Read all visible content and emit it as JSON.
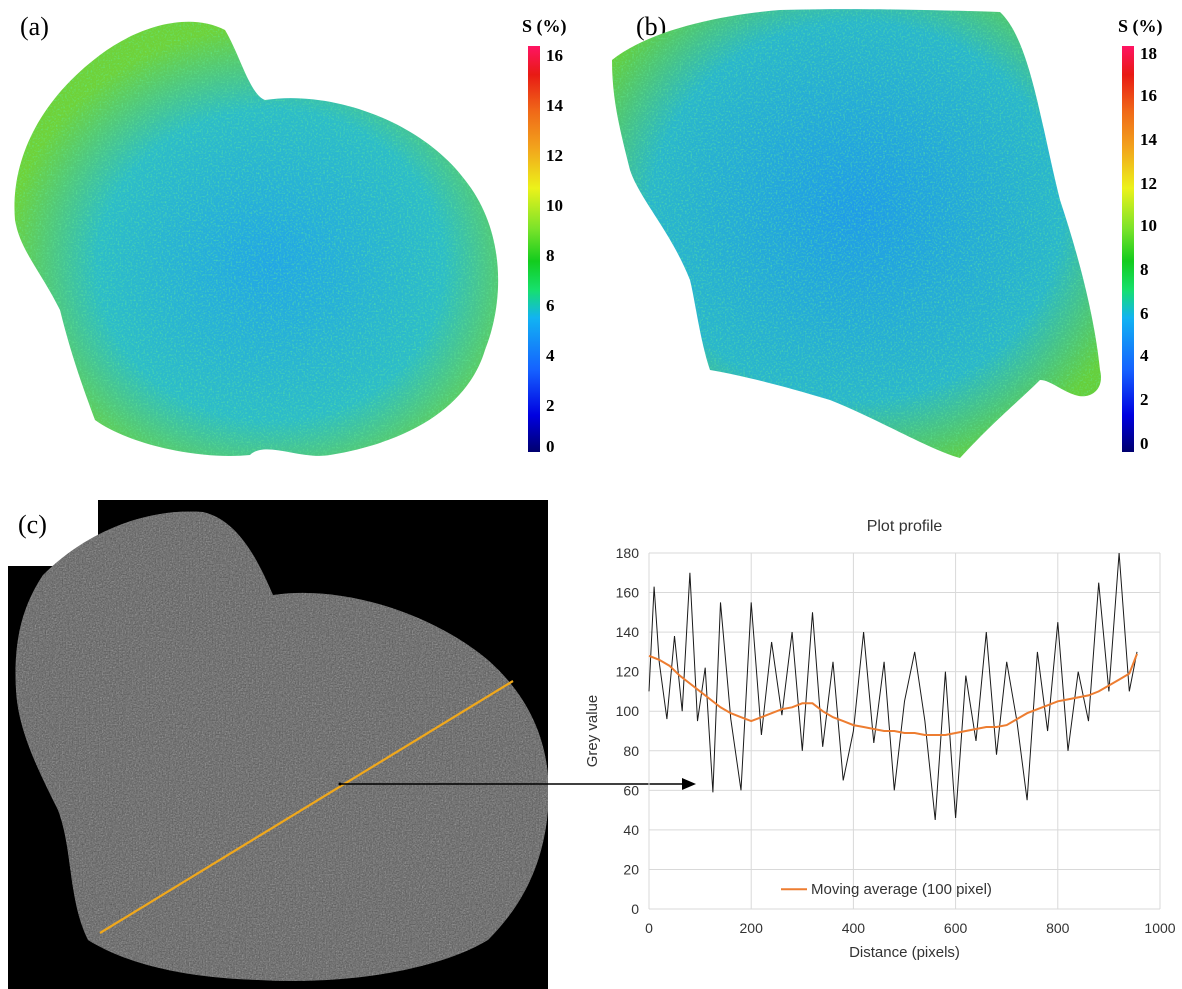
{
  "panels": {
    "a": {
      "label": "(a)"
    },
    "b": {
      "label": "(b)"
    },
    "c": {
      "label": "(c)"
    }
  },
  "colorbars": [
    {
      "title": "S (%)",
      "ticks": [
        "16",
        "14",
        "12",
        "10",
        "8",
        "6",
        "4",
        "2",
        "0"
      ]
    },
    {
      "title": "S (%)",
      "ticks": [
        "18",
        "16",
        "14",
        "12",
        "10",
        "8",
        "6",
        "4",
        "2",
        "0"
      ]
    }
  ],
  "colors": {
    "colormap": [
      "#00006e",
      "#0000e0",
      "#1560ff",
      "#12b3f2",
      "#16e06c",
      "#13cc1e",
      "#7be32a",
      "#ecf21a",
      "#f2a31c",
      "#f06818",
      "#e81a14",
      "#ff1463"
    ],
    "scan_line": "#f0a81c",
    "moving_average": "#ed7d31",
    "grey_profile": "#1a1a1a"
  },
  "chart_data": {
    "type": "line",
    "title": "Plot profile",
    "xlabel": "Distance (pixels)",
    "ylabel": "Grey value",
    "xlim": [
      0,
      1000
    ],
    "ylim": [
      0,
      180
    ],
    "xticks": [
      0,
      200,
      400,
      600,
      800,
      1000
    ],
    "yticks": [
      0,
      20,
      40,
      60,
      80,
      100,
      120,
      140,
      160,
      180
    ],
    "grid": true,
    "legend": {
      "position": "bottom-center"
    },
    "series": [
      {
        "name": "",
        "x": [
          0,
          10,
          20,
          35,
          50,
          65,
          80,
          95,
          110,
          125,
          140,
          160,
          180,
          200,
          220,
          240,
          260,
          280,
          300,
          320,
          340,
          360,
          380,
          400,
          420,
          440,
          460,
          480,
          500,
          520,
          540,
          560,
          580,
          600,
          620,
          640,
          660,
          680,
          700,
          720,
          740,
          760,
          780,
          800,
          820,
          840,
          860,
          880,
          900,
          920,
          940,
          955
        ],
        "y": [
          110,
          163,
          125,
          96,
          138,
          100,
          170,
          95,
          122,
          59,
          155,
          96,
          60,
          155,
          88,
          135,
          98,
          140,
          80,
          150,
          82,
          125,
          65,
          90,
          140,
          84,
          125,
          60,
          105,
          130,
          95,
          45,
          120,
          46,
          118,
          85,
          140,
          78,
          125,
          95,
          55,
          130,
          90,
          145,
          80,
          120,
          95,
          165,
          110,
          180,
          110,
          130
        ]
      },
      {
        "name": "Moving average (100 pixel)",
        "x": [
          0,
          20,
          40,
          60,
          80,
          100,
          120,
          140,
          160,
          180,
          200,
          220,
          240,
          260,
          280,
          300,
          320,
          340,
          360,
          380,
          400,
          420,
          440,
          460,
          480,
          500,
          520,
          540,
          560,
          580,
          600,
          620,
          640,
          660,
          680,
          700,
          720,
          740,
          760,
          780,
          800,
          820,
          840,
          860,
          880,
          900,
          920,
          940,
          955
        ],
        "y": [
          128,
          126,
          123,
          118,
          114,
          110,
          106,
          102,
          99,
          97,
          95,
          97,
          99,
          101,
          102,
          104,
          104,
          100,
          97,
          95,
          93,
          92,
          91,
          90,
          90,
          89,
          89,
          88,
          88,
          88,
          89,
          90,
          91,
          92,
          92,
          93,
          96,
          99,
          101,
          103,
          105,
          106,
          107,
          108,
          110,
          113,
          116,
          119,
          129
        ]
      }
    ]
  }
}
